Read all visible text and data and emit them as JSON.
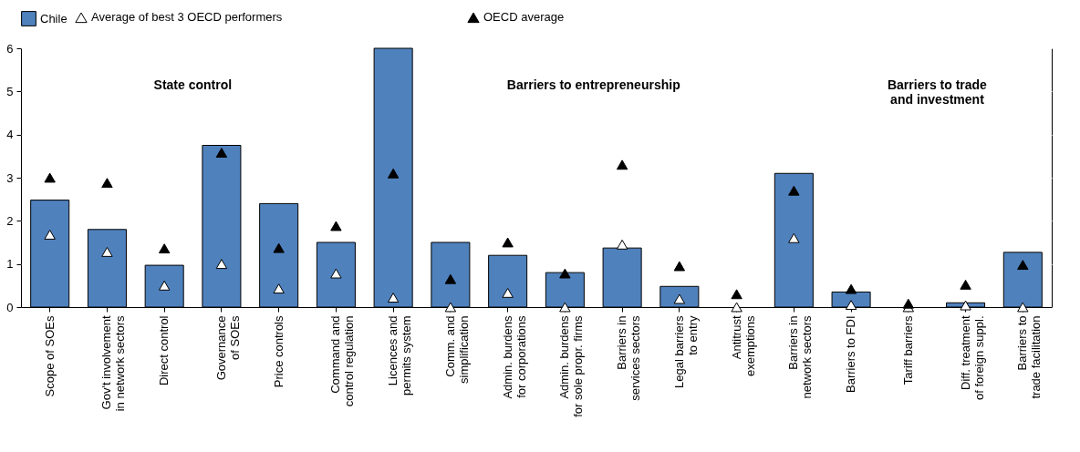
{
  "chart_data": {
    "type": "bar",
    "categories": [
      "Scope of SOEs",
      "Gov't involvement\nin network sectors",
      "Direct control",
      "Governance\nof SOEs",
      "Price controls",
      "Command and\ncontrol regulation",
      "Licences and\npermits system",
      "Comm. and\nsimplification",
      "Admin. burdens\nfor corporations",
      "Admin. burdens\nfor sole propr. firms",
      "Barriers in\nservices sectors",
      "Legal barriers\nto entry",
      "Antitrust\nexemptions",
      "Barriers in\nnetwork sectors",
      "Barriers to FDI",
      "Tariff barriers",
      "Diff. treatment\nof foreign suppl.",
      "Barriers to\ntrade facilitation"
    ],
    "series": [
      {
        "name": "Chile",
        "color": "#4f81bd",
        "values": [
          2.48,
          1.8,
          0.97,
          3.75,
          2.4,
          1.5,
          6,
          1.5,
          1.2,
          0.8,
          1.37,
          0.48,
          0,
          3.1,
          0.35,
          0,
          0.1,
          1.27
        ]
      },
      {
        "name": "Average of best 3 OECD performers",
        "type": "scatter",
        "color": "#ffffff",
        "values": [
          1.68,
          1.28,
          0.5,
          1.0,
          0.43,
          0.78,
          0.22,
          0,
          0.33,
          0,
          1.45,
          0.19,
          0,
          1.6,
          0.05,
          0,
          0.04,
          0
        ]
      },
      {
        "name": "OECD average",
        "type": "scatter",
        "color": "#000000",
        "values": [
          3.0,
          2.88,
          1.36,
          3.58,
          1.37,
          1.88,
          3.1,
          0.65,
          1.5,
          0.78,
          3.3,
          0.95,
          0.3,
          2.7,
          0.42,
          0.08,
          0.52,
          0.98
        ]
      }
    ],
    "marker": "triangle",
    "ylim": [
      0,
      6
    ],
    "yticks": [
      0,
      1,
      2,
      3,
      4,
      5,
      6
    ],
    "grid": true,
    "legend": "top",
    "annotations": [
      "State control",
      "Barriers to entrepreneurship",
      "Barriers to trade\nand investment"
    ]
  }
}
